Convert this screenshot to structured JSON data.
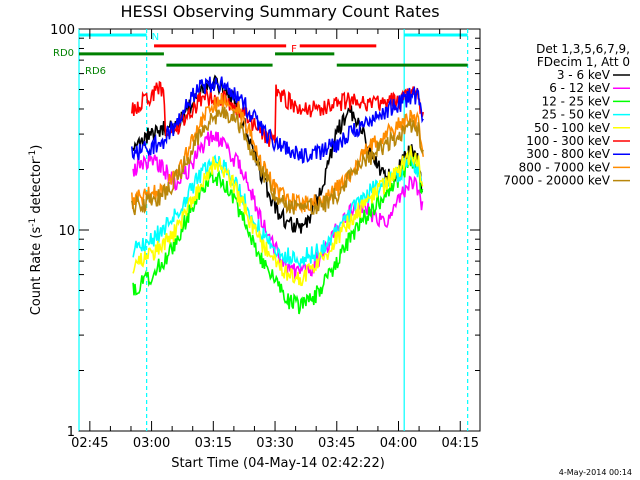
{
  "chart_data": {
    "type": "line",
    "title": "HESSI Observing Summary Count Rates",
    "xlabel": "Start Time (04-May-14 02:42:22)",
    "ylabel": "Count Rate (s",
    "ylabel_sup": "-1",
    "ylabel_tail": " detector",
    "ylabel_sup2": "-1",
    "ylabel_end": ")",
    "y_scale": "log",
    "ylim": [
      1,
      100
    ],
    "y_ticks": [
      {
        "value": 1,
        "label": "1"
      },
      {
        "value": 10,
        "label": "10"
      },
      {
        "value": 100,
        "label": "100"
      }
    ],
    "xlim": [
      2.7061,
      4.33
    ],
    "x_ticks": [
      {
        "value": 2.75,
        "label": "02:45"
      },
      {
        "value": 3.0,
        "label": "03:00"
      },
      {
        "value": 3.25,
        "label": "03:15"
      },
      {
        "value": 3.5,
        "label": "03:30"
      },
      {
        "value": 3.75,
        "label": "03:45"
      },
      {
        "value": 4.0,
        "label": "04:00"
      },
      {
        "value": 4.25,
        "label": "04:15"
      }
    ],
    "legend_header": [
      "Det 1,3,5,6,7,9,",
      "FDecim 1, Att 0"
    ],
    "legend_position": "right",
    "series": [
      {
        "name": "3 - 6 keV",
        "color": "#000000",
        "x": [
          2.925,
          2.96,
          3.0,
          3.05,
          3.1,
          3.15,
          3.2,
          3.25,
          3.3,
          3.35,
          3.4,
          3.45,
          3.5,
          3.55,
          3.6,
          3.65,
          3.7,
          3.75,
          3.8,
          3.85,
          3.9,
          3.95,
          4.0,
          4.05,
          4.08,
          4.1
        ],
        "y": [
          26,
          28,
          30,
          32,
          33,
          40,
          52,
          55,
          50,
          40,
          28,
          18,
          13,
          11,
          10.5,
          12,
          18,
          30,
          40,
          32,
          22,
          18,
          20,
          25,
          22,
          15
        ]
      },
      {
        "name": "6 - 12 keV",
        "color": "#ff00ff",
        "x": [
          2.925,
          2.96,
          3.0,
          3.05,
          3.1,
          3.15,
          3.2,
          3.25,
          3.3,
          3.35,
          3.4,
          3.45,
          3.5,
          3.55,
          3.6,
          3.65,
          3.7,
          3.75,
          3.8,
          3.85,
          3.9,
          3.95,
          4.0,
          4.05,
          4.08,
          4.1
        ],
        "y": [
          20,
          22,
          22,
          20,
          17,
          20,
          26,
          30,
          27,
          21,
          16,
          11,
          8,
          6.5,
          6,
          6.5,
          8,
          10,
          12,
          13,
          12,
          11,
          14,
          18,
          16,
          12
        ]
      },
      {
        "name": "12 - 25 keV",
        "color": "#00ff00",
        "x": [
          2.925,
          2.96,
          3.0,
          3.05,
          3.1,
          3.15,
          3.2,
          3.25,
          3.3,
          3.35,
          3.4,
          3.45,
          3.5,
          3.55,
          3.6,
          3.65,
          3.7,
          3.75,
          3.8,
          3.85,
          3.9,
          3.95,
          4.0,
          4.05,
          4.08,
          4.1
        ],
        "y": [
          5,
          5.5,
          6,
          7,
          9,
          12,
          16,
          19,
          17,
          13,
          9.5,
          7,
          5.5,
          4.5,
          4.2,
          4.5,
          5.5,
          7,
          9,
          11,
          13,
          15,
          18,
          22,
          20,
          14
        ]
      },
      {
        "name": "25 - 50 keV",
        "color": "#00ffff",
        "x": [
          2.925,
          2.96,
          3.0,
          3.05,
          3.1,
          3.15,
          3.2,
          3.25,
          3.3,
          3.35,
          3.4,
          3.45,
          3.5,
          3.55,
          3.6,
          3.65,
          3.7,
          3.75,
          3.8,
          3.85,
          3.9,
          3.95,
          4.0,
          4.05,
          4.08,
          4.1
        ],
        "y": [
          8,
          8.5,
          9,
          10,
          12,
          15,
          19,
          22,
          20,
          16,
          12,
          9.5,
          8,
          7.5,
          7.3,
          7.5,
          8.5,
          10,
          12,
          14,
          16,
          17,
          19,
          22,
          20,
          15
        ]
      },
      {
        "name": "50 - 100 keV",
        "color": "#ffff00",
        "x": [
          2.925,
          2.96,
          3.0,
          3.05,
          3.1,
          3.15,
          3.2,
          3.25,
          3.3,
          3.35,
          3.4,
          3.45,
          3.5,
          3.55,
          3.6,
          3.65,
          3.7,
          3.75,
          3.8,
          3.85,
          3.9,
          3.95,
          4.0,
          4.05,
          4.08,
          4.1
        ],
        "y": [
          6.5,
          7,
          7.5,
          8.5,
          10,
          13,
          17,
          21,
          20,
          15,
          11,
          8.5,
          7,
          6,
          5.8,
          6.2,
          7.5,
          9,
          11,
          13,
          15,
          17,
          20,
          24,
          22,
          16
        ]
      },
      {
        "name": "100 - 300 keV",
        "color": "#ff0000",
        "x": [
          2.92,
          2.96,
          3.0,
          3.05,
          3.058,
          3.1,
          3.15,
          3.2,
          3.25,
          3.3,
          3.35,
          3.4,
          3.45,
          3.5,
          3.503,
          3.55,
          3.6,
          3.65,
          3.7,
          3.75,
          3.8,
          3.85,
          3.9,
          3.95,
          4.0,
          4.05,
          4.08,
          4.1
        ],
        "y": [
          40,
          43,
          47,
          52,
          28,
          32,
          38,
          45,
          46,
          44,
          40,
          35,
          30,
          27,
          50,
          44,
          40,
          40,
          41,
          42,
          44,
          43,
          42,
          43,
          44,
          50,
          48,
          35
        ]
      },
      {
        "name": "300 - 800 keV",
        "color": "#0000ff",
        "x": [
          2.92,
          2.96,
          3.0,
          3.05,
          3.1,
          3.15,
          3.2,
          3.25,
          3.3,
          3.35,
          3.4,
          3.45,
          3.5,
          3.55,
          3.6,
          3.65,
          3.7,
          3.75,
          3.8,
          3.85,
          3.9,
          3.95,
          4.0,
          4.05,
          4.08,
          4.1
        ],
        "y": [
          24,
          25,
          26,
          28,
          34,
          44,
          52,
          53,
          52,
          47,
          38,
          31,
          27,
          25,
          24,
          24,
          25,
          27,
          30,
          33,
          36,
          39,
          42,
          47,
          45,
          36
        ]
      },
      {
        "name": "800 - 7000 keV",
        "color": "#ff8c00",
        "x": [
          2.92,
          2.96,
          3.0,
          3.05,
          3.1,
          3.15,
          3.2,
          3.25,
          3.3,
          3.35,
          3.4,
          3.45,
          3.5,
          3.55,
          3.6,
          3.65,
          3.7,
          3.75,
          3.8,
          3.85,
          3.9,
          3.95,
          4.0,
          4.05,
          4.08,
          4.1
        ],
        "y": [
          14,
          14.5,
          15,
          16,
          19,
          25,
          34,
          42,
          44,
          40,
          30,
          21,
          16,
          14,
          13.5,
          13.5,
          14,
          16,
          19,
          23,
          27,
          30,
          33,
          36,
          34,
          25
        ]
      },
      {
        "name": "7000 - 20000 keV",
        "color": "#b8860b",
        "x": [
          2.92,
          2.96,
          3.0,
          3.05,
          3.1,
          3.15,
          3.2,
          3.25,
          3.3,
          3.35,
          3.4,
          3.45,
          3.5,
          3.55,
          3.6,
          3.65,
          3.7,
          3.75,
          3.8,
          3.85,
          3.9,
          3.95,
          4.0,
          4.05,
          4.08,
          4.1
        ],
        "y": [
          13,
          13.5,
          14,
          15,
          18,
          23,
          30,
          37,
          38,
          34,
          26,
          19,
          15,
          13.2,
          12.8,
          13,
          13.5,
          15,
          18,
          21,
          24,
          27,
          30,
          33,
          31,
          23
        ]
      }
    ],
    "vertical_markers": [
      {
        "x": 2.7061,
        "color": "#00ffff",
        "style": "solid"
      },
      {
        "x": 2.98,
        "color": "#00ffff",
        "style": "dashed"
      },
      {
        "x": 4.023,
        "color": "#00ffff",
        "style": "solid"
      },
      {
        "x": 4.28,
        "color": "#00ffff",
        "style": "dashed"
      }
    ],
    "flag_bars": [
      {
        "label": "N",
        "color": "#00ffff",
        "segments": [
          [
            2.7061,
            2.98
          ],
          [
            4.023,
            4.28
          ]
        ],
        "y_frac": 0.985
      },
      {
        "label": "F",
        "color": "#ff0000",
        "segments": [
          [
            3.01,
            3.545
          ],
          [
            3.6,
            3.91
          ]
        ],
        "y_frac": 0.958
      },
      {
        "label": "RD0",
        "color": "#008000",
        "segments": [
          [
            2.7061,
            3.05
          ],
          [
            3.5,
            3.74
          ]
        ],
        "y_frac": 0.938
      },
      {
        "label": "RD6",
        "color": "#008000",
        "segments": [
          [
            3.06,
            3.49
          ],
          [
            3.75,
            4.28
          ]
        ],
        "y_frac": 0.91
      }
    ]
  },
  "footer": {
    "generated": "4-May-2014 00:14"
  }
}
